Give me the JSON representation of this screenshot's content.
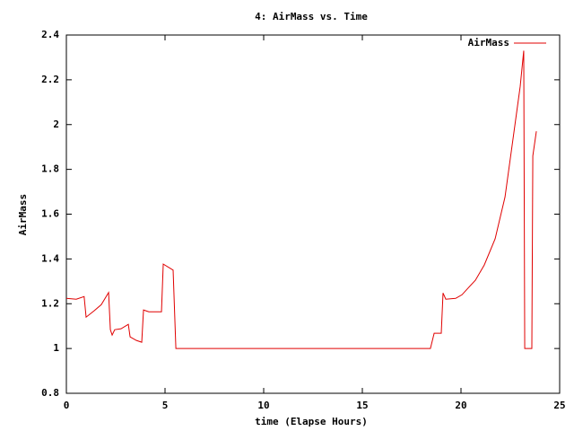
{
  "chart_data": {
    "type": "line",
    "title": "4: AirMass vs. Time",
    "x_label": "time (Elapse Hours)",
    "y_label": "AirMass",
    "x": [
      0,
      0.5,
      0.9,
      1.0,
      1.4,
      1.77,
      2.14,
      2.23,
      2.32,
      2.45,
      2.77,
      3.14,
      3.23,
      3.55,
      3.82,
      3.91,
      4.18,
      4.82,
      4.91,
      5.41,
      5.55,
      18.45,
      18.64,
      19.0,
      19.09,
      19.23,
      19.73,
      20.05,
      20.36,
      20.73,
      21.18,
      21.73,
      22.23,
      22.68,
      23.0,
      23.18,
      23.23,
      23.59,
      23.64,
      23.82
    ],
    "series": [
      {
        "name": "AirMass",
        "color": "#e00000",
        "values": [
          1.224,
          1.22,
          1.232,
          1.14,
          1.168,
          1.196,
          1.25,
          1.084,
          1.06,
          1.084,
          1.088,
          1.108,
          1.052,
          1.036,
          1.028,
          1.172,
          1.164,
          1.164,
          1.377,
          1.35,
          1.0,
          1.0,
          1.068,
          1.068,
          1.248,
          1.22,
          1.224,
          1.24,
          1.27,
          1.305,
          1.373,
          1.49,
          1.676,
          1.964,
          2.17,
          2.33,
          1.0,
          1.0,
          1.86,
          1.97
        ]
      }
    ],
    "xlim": [
      0,
      25
    ],
    "xticks": [
      0,
      5,
      10,
      15,
      20,
      25
    ],
    "ylim": [
      0.8,
      2.4
    ],
    "yticks": [
      0.8,
      1,
      1.2,
      1.4,
      1.6,
      1.8,
      2,
      2.2,
      2.4
    ],
    "legend": "top-right"
  }
}
